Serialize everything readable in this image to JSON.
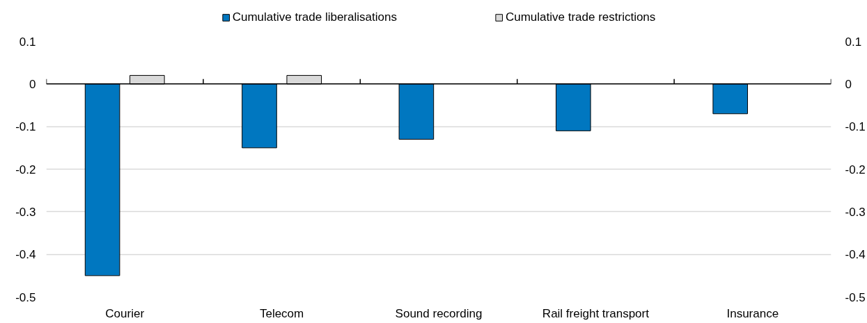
{
  "chart_data": {
    "type": "bar",
    "categories": [
      "Courier",
      "Telecom",
      "Sound recording",
      "Rail freight transport",
      "Insurance"
    ],
    "series": [
      {
        "name": "Cumulative trade liberalisations",
        "color": "#0077c0",
        "values": [
          -0.45,
          -0.15,
          -0.13,
          -0.11,
          -0.07
        ]
      },
      {
        "name": "Cumulative trade restrictions",
        "color": "#d9d9d9",
        "values": [
          0.02,
          0.02,
          null,
          null,
          null
        ]
      }
    ],
    "ylim": [
      -0.5,
      0.1
    ],
    "yticks": [
      -0.5,
      -0.4,
      -0.3,
      -0.2,
      -0.1,
      0,
      0.1
    ],
    "y2lim": [
      -0.5,
      0.1
    ],
    "y2ticks": [
      -0.5,
      -0.4,
      -0.3,
      -0.2,
      -0.1,
      0,
      0.1
    ],
    "grid": "y",
    "legend": "top"
  }
}
